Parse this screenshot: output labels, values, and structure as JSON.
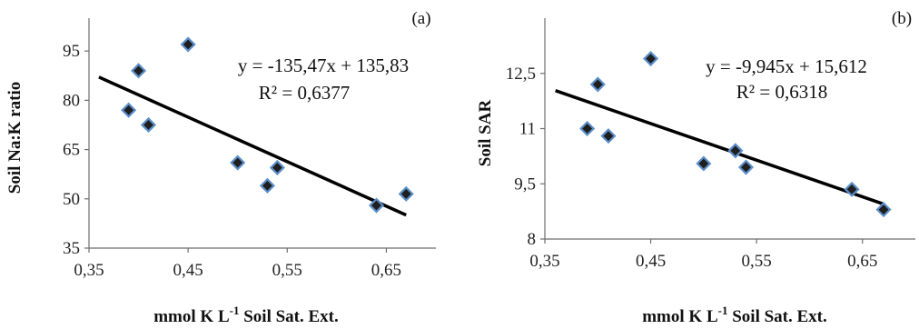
{
  "chart_data": [
    {
      "type": "scatter",
      "panel_label": "(a)",
      "xlabel": "mmol K L",
      "xlabel_sup": "-1",
      "xlabel_suffix": " Soil Sat. Ext.",
      "ylabel": "Soil Na:K ratio",
      "xlim": [
        0.35,
        0.7
      ],
      "ylim": [
        35,
        105
      ],
      "x_ticks": [
        0.35,
        0.45,
        0.55,
        0.65
      ],
      "x_tick_labels": [
        "0,35",
        "0,45",
        "0,55",
        "0,65"
      ],
      "y_ticks": [
        35,
        50,
        65,
        80,
        95
      ],
      "y_tick_labels": [
        "35",
        "50",
        "65",
        "80",
        "95"
      ],
      "grid": false,
      "marker_color": "#1f1f1f",
      "marker_edge_color": "#5b8fc9",
      "trendline_color": "#000000",
      "points": [
        {
          "x": 0.39,
          "y": 77
        },
        {
          "x": 0.4,
          "y": 89
        },
        {
          "x": 0.41,
          "y": 72.5
        },
        {
          "x": 0.45,
          "y": 97
        },
        {
          "x": 0.5,
          "y": 61
        },
        {
          "x": 0.53,
          "y": 54
        },
        {
          "x": 0.54,
          "y": 59.5
        },
        {
          "x": 0.64,
          "y": 48
        },
        {
          "x": 0.67,
          "y": 51.5
        }
      ],
      "trendline": {
        "slope": -135.47,
        "intercept": 135.83,
        "x_range": [
          0.36,
          0.67
        ]
      },
      "equation": "y = -135,47x + 135,83",
      "r2": "R² = 0,6377"
    },
    {
      "type": "scatter",
      "panel_label": "(b)",
      "xlabel": "mmol K L",
      "xlabel_sup": "-1",
      "xlabel_suffix": " Soil Sat. Ext.",
      "ylabel": "Soil SAR",
      "xlim": [
        0.35,
        0.7
      ],
      "ylim": [
        8,
        14
      ],
      "x_ticks": [
        0.35,
        0.45,
        0.55,
        0.65
      ],
      "x_tick_labels": [
        "0,35",
        "0,45",
        "0,55",
        "0,65"
      ],
      "y_ticks": [
        8,
        9.5,
        11,
        12.5
      ],
      "y_tick_labels": [
        "8",
        "9,5",
        "11",
        "12,5"
      ],
      "grid": false,
      "marker_color": "#1f1f1f",
      "marker_edge_color": "#5b8fc9",
      "trendline_color": "#000000",
      "points": [
        {
          "x": 0.39,
          "y": 11
        },
        {
          "x": 0.4,
          "y": 12.2
        },
        {
          "x": 0.41,
          "y": 10.8
        },
        {
          "x": 0.45,
          "y": 12.9
        },
        {
          "x": 0.5,
          "y": 10.05
        },
        {
          "x": 0.53,
          "y": 10.4
        },
        {
          "x": 0.54,
          "y": 9.95
        },
        {
          "x": 0.64,
          "y": 9.35
        },
        {
          "x": 0.67,
          "y": 8.8
        }
      ],
      "trendline": {
        "slope": -9.945,
        "intercept": 15.612,
        "x_range": [
          0.36,
          0.67
        ]
      },
      "equation": "y = -9,945x + 15,612",
      "r2": "R² = 0,6318"
    }
  ]
}
